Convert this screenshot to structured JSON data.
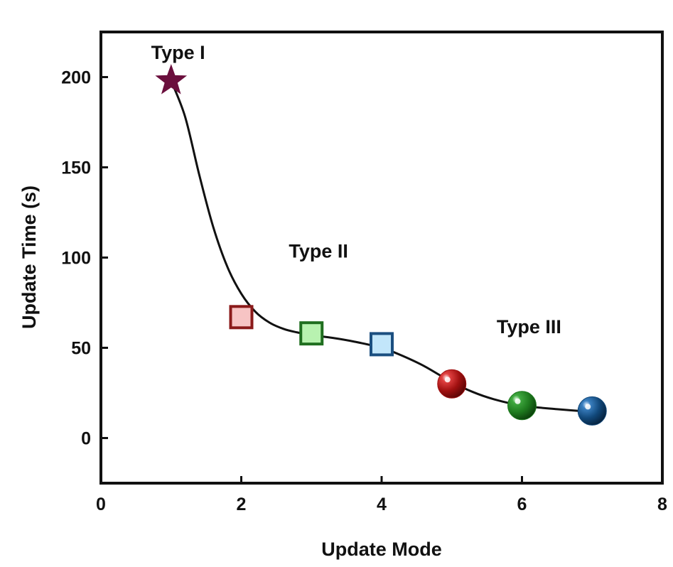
{
  "chart_data": {
    "type": "scatter",
    "title": "",
    "xlabel": "Update Mode",
    "ylabel": "Update Time (s)",
    "xlim": [
      0,
      8
    ],
    "ylim": [
      -25,
      225
    ],
    "xticks": [
      0,
      2,
      4,
      6,
      8
    ],
    "yticks": [
      0,
      50,
      100,
      150,
      200
    ],
    "xtick_labels": [
      "0",
      "2",
      "4",
      "6",
      "8"
    ],
    "ytick_labels": [
      "0",
      "50",
      "100",
      "150",
      "200"
    ],
    "grid": false,
    "legend": "none",
    "points": [
      {
        "x": 1,
        "y": 198,
        "marker": "star",
        "color": "#6b0f3d",
        "group": "Type I"
      },
      {
        "x": 2,
        "y": 67,
        "marker": "square",
        "color": "#8b1a1a",
        "fill": "#f7c4c4",
        "group": "Type II"
      },
      {
        "x": 3,
        "y": 58,
        "marker": "square",
        "color": "#1f6e1f",
        "fill": "#b8f2b0",
        "group": "Type II"
      },
      {
        "x": 4,
        "y": 52,
        "marker": "square",
        "color": "#1b4f80",
        "fill": "#c2e6fa",
        "group": "Type II"
      },
      {
        "x": 5,
        "y": 30,
        "marker": "sphere",
        "color": "#a01010",
        "group": "Type III"
      },
      {
        "x": 6,
        "y": 18,
        "marker": "sphere",
        "color": "#1e7a1e",
        "group": "Type III"
      },
      {
        "x": 7,
        "y": 15,
        "marker": "sphere",
        "color": "#11487a",
        "group": "Type III"
      }
    ],
    "curve": [
      [
        1,
        198
      ],
      [
        1.2,
        178
      ],
      [
        1.4,
        146
      ],
      [
        1.6,
        117
      ],
      [
        1.8,
        95
      ],
      [
        2,
        80
      ],
      [
        2.2,
        70
      ],
      [
        2.4,
        64
      ],
      [
        2.6,
        60.5
      ],
      [
        2.8,
        58.5
      ],
      [
        3,
        57
      ],
      [
        3.3,
        55.5
      ],
      [
        3.6,
        53.5
      ],
      [
        4,
        50
      ],
      [
        4.3,
        45.5
      ],
      [
        4.6,
        40
      ],
      [
        5,
        31
      ],
      [
        5.3,
        25.5
      ],
      [
        5.6,
        21.5
      ],
      [
        6,
        18
      ],
      [
        6.5,
        16
      ],
      [
        7,
        14.5
      ]
    ],
    "annotations": [
      {
        "text": "Type I",
        "x": 1.1,
        "y": 210
      },
      {
        "text": "Type II",
        "x": 3.1,
        "y": 100
      },
      {
        "text": "Type III",
        "x": 6.1,
        "y": 58
      }
    ]
  }
}
